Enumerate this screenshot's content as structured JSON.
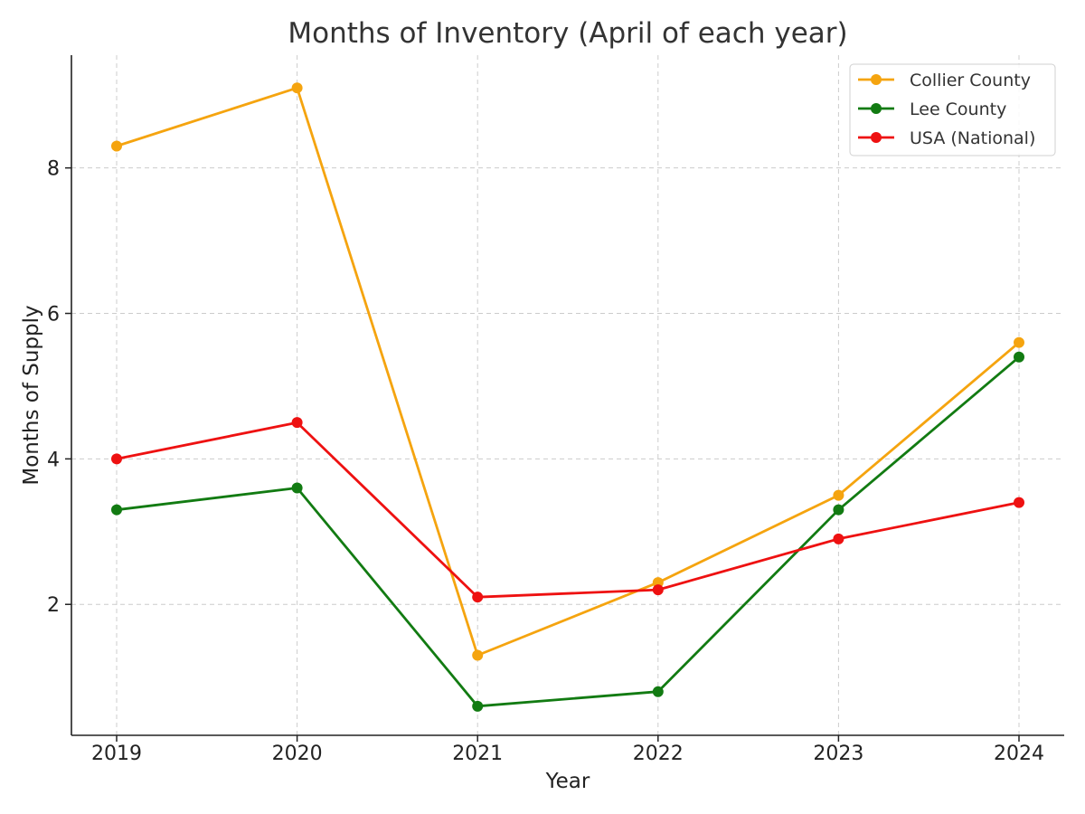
{
  "chart_data": {
    "type": "line",
    "title": "Months of Inventory (April of each year)",
    "xlabel": "Year",
    "ylabel": "Months of Supply",
    "x": [
      "2019",
      "2020",
      "2021",
      "2022",
      "2023",
      "2024"
    ],
    "yticks": [
      2,
      4,
      6,
      8
    ],
    "ylim": [
      0.2,
      9.55
    ],
    "grid": true,
    "legend_position": "top-right",
    "series": [
      {
        "name": "Collier County",
        "color": "#f5a40f",
        "values": [
          8.3,
          9.1,
          1.3,
          2.3,
          3.5,
          5.6
        ]
      },
      {
        "name": "Lee County",
        "color": "#127b12",
        "values": [
          3.3,
          3.6,
          0.6,
          0.8,
          3.3,
          5.4
        ]
      },
      {
        "name": "USA (National)",
        "color": "#ee1111",
        "values": [
          4.0,
          4.5,
          2.1,
          2.2,
          2.9,
          3.4
        ]
      }
    ]
  }
}
